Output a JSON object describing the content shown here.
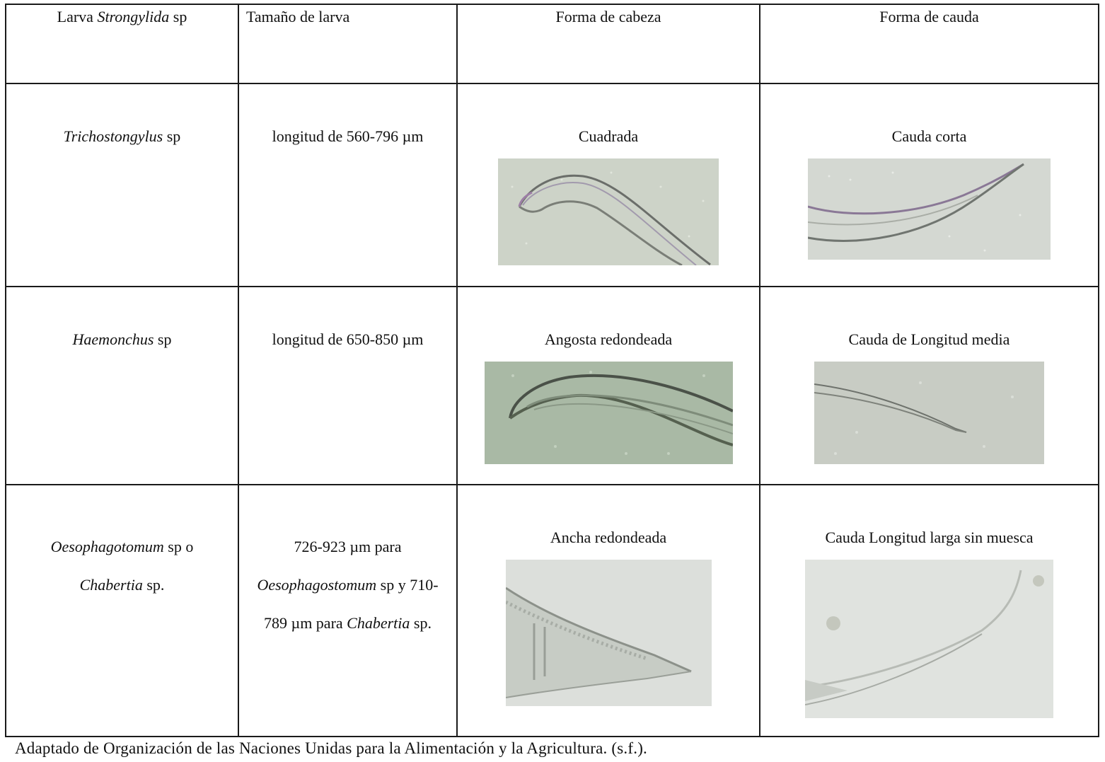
{
  "header": {
    "col1_prefix": "Larva",
    "col1_genus": "Strongylida",
    "col1_suffix": "sp",
    "col2": "Tamaño de larva",
    "col3": "Forma de cabeza",
    "col4": "Forma de cauda"
  },
  "rows": [
    {
      "genus": "Trichostongylus",
      "genus_suffix": "sp",
      "size": "longitud de 560-796 µm",
      "head": "Cuadrada",
      "tail": "Cauda corta"
    },
    {
      "genus": "Haemonchus",
      "genus_suffix": "sp",
      "size": "longitud de 650-850 µm",
      "head": "Angosta redondeada",
      "tail": "Cauda de Longitud media"
    },
    {
      "genus": "Oesophagotomum",
      "genus_suffix": "sp o",
      "genus2": "Chabertia",
      "genus2_suffix": "sp.",
      "size_line1": "726-923 µm para",
      "size_genus1": "Oesophagostomum",
      "size_mid": "sp y  710-",
      "size_pre2": "789 µm para",
      "size_genus2": "Chabertia",
      "size_end": "sp.",
      "head": "Ancha redondeada",
      "tail": "Cauda Longitud larga sin muesca"
    }
  ],
  "caption": "Adaptado de Organización de las Naciones Unidas para la Alimentación y la Agricultura. (s.f.)."
}
